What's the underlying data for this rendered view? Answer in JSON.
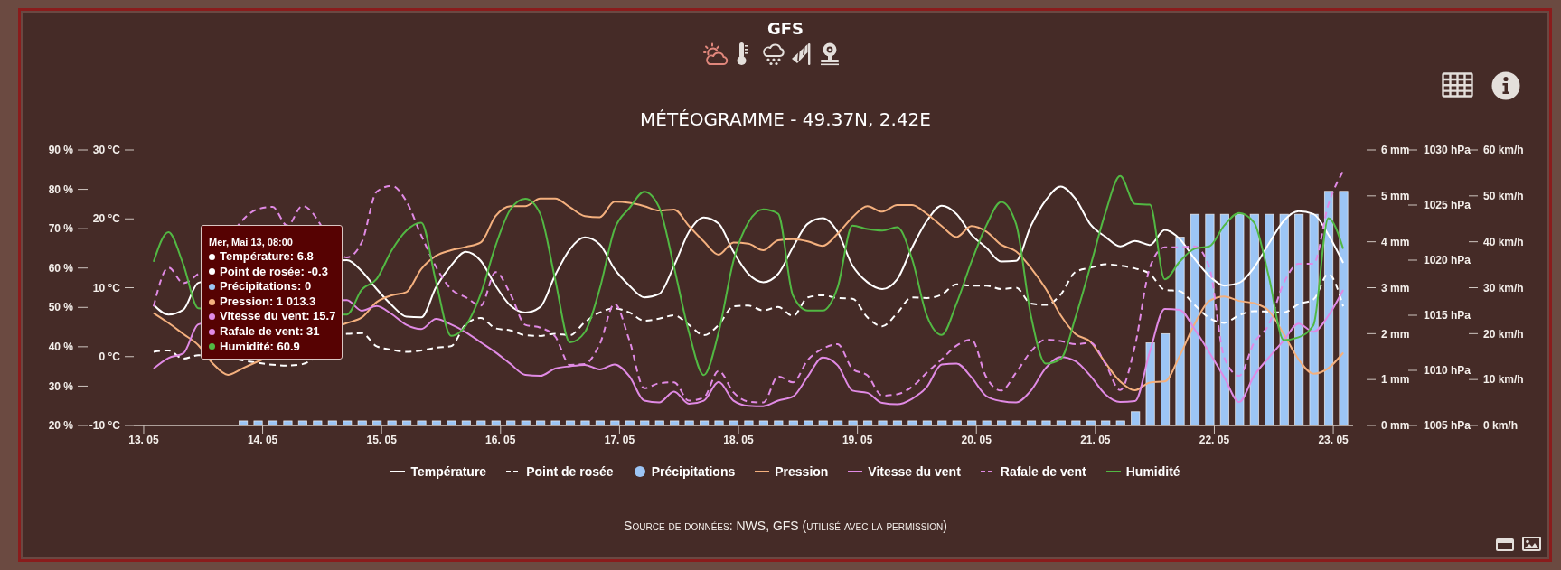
{
  "chart_data": [
    {
      "type": "line",
      "title": "GFS",
      "subtitle": "MÉTÉOGRAMME - 49.37N, 2.42E",
      "x": [
        "--05-13T02:00",
        "--05-13T05:00",
        "--05-13T08:00",
        "--05-13T11:00",
        "--05-13T14:00",
        "--05-13T17:00",
        "--05-13T20:00",
        "--05-13T23:00",
        "--05-14T02:00",
        "--05-14T05:00",
        "--05-14T08:00",
        "--05-14T11:00",
        "--05-14T14:00",
        "--05-14T17:00",
        "--05-14T20:00",
        "--05-14T23:00",
        "--05-15T02:00",
        "--05-15T05:00",
        "--05-15T08:00",
        "--05-15T11:00",
        "--05-15T14:00",
        "--05-15T17:00",
        "--05-15T20:00",
        "--05-15T23:00",
        "--05-16T02:00",
        "--05-16T05:00",
        "--05-16T08:00",
        "--05-16T11:00",
        "--05-16T14:00",
        "--05-16T17:00",
        "--05-16T20:00",
        "--05-16T23:00",
        "--05-17T02:00",
        "--05-17T05:00",
        "--05-17T08:00",
        "--05-17T11:00",
        "--05-17T14:00",
        "--05-17T17:00",
        "--05-17T20:00",
        "--05-17T23:00",
        "--05-18T02:00",
        "--05-18T05:00",
        "--05-18T08:00",
        "--05-18T11:00",
        "--05-18T14:00",
        "--05-18T17:00",
        "--05-18T20:00",
        "--05-18T23:00",
        "--05-19T02:00",
        "--05-19T05:00",
        "--05-19T08:00",
        "--05-19T11:00",
        "--05-19T14:00",
        "--05-19T17:00",
        "--05-19T20:00",
        "--05-19T23:00",
        "--05-20T02:00",
        "--05-20T05:00",
        "--05-20T08:00",
        "--05-20T11:00",
        "--05-20T14:00",
        "--05-20T17:00",
        "--05-20T20:00",
        "--05-20T23:00",
        "--05-21T02:00",
        "--05-21T05:00",
        "--05-21T08:00",
        "--05-21T11:00",
        "--05-21T14:00",
        "--05-21T17:00",
        "--05-21T20:00",
        "--05-21T23:00",
        "--05-22T02:00",
        "--05-22T05:00",
        "--05-22T08:00",
        "--05-22T11:00",
        "--05-22T14:00",
        "--05-22T17:00",
        "--05-22T20:00",
        "--05-22T23:00",
        "--05-23T02:00"
      ],
      "xlim": [
        "--05-12T22:00",
        "--05-23T04:00"
      ],
      "xticks": [
        {
          "value": "--05-13",
          "label": "13. 05"
        },
        {
          "value": "--05-14",
          "label": "14. 05"
        },
        {
          "value": "--05-15",
          "label": "15. 05"
        },
        {
          "value": "--05-16",
          "label": "16. 05"
        },
        {
          "value": "--05-17",
          "label": "17. 05"
        },
        {
          "value": "--05-18",
          "label": "18. 05"
        },
        {
          "value": "--05-19",
          "label": "19. 05"
        },
        {
          "value": "--05-20",
          "label": "20. 05"
        },
        {
          "value": "--05-21",
          "label": "21. 05"
        },
        {
          "value": "--05-22",
          "label": "22. 05"
        },
        {
          "value": "--05-23",
          "label": "23. 05"
        }
      ],
      "ylim": [
        -10,
        30
      ],
      "yticks": [
        {
          "value": -10,
          "label": "-10 °C"
        },
        {
          "value": 0,
          "label": "0 °C"
        },
        {
          "value": 10,
          "label": "10 °C"
        },
        {
          "value": 20,
          "label": "20 °C"
        },
        {
          "value": 30,
          "label": "30 °C"
        }
      ],
      "y2lim": [
        0,
        6
      ],
      "y2ticks": [
        {
          "value": 0,
          "label": "0 mm"
        },
        {
          "value": 1,
          "label": "1 mm"
        },
        {
          "value": 2,
          "label": "2 mm"
        },
        {
          "value": 3,
          "label": "3 mm"
        },
        {
          "value": 4,
          "label": "4 mm"
        },
        {
          "value": 5,
          "label": "5 mm"
        },
        {
          "value": 6,
          "label": "6 mm"
        }
      ],
      "y3lim": [
        1005,
        1030
      ],
      "y3ticks": [
        {
          "value": 1005,
          "label": "1005 hPa"
        },
        {
          "value": 1010,
          "label": "1010 hPa"
        },
        {
          "value": 1015,
          "label": "1015 hPa"
        },
        {
          "value": 1020,
          "label": "1020 hPa"
        },
        {
          "value": 1025,
          "label": "1025 hPa"
        },
        {
          "value": 1030,
          "label": "1030 hPa"
        }
      ],
      "series": [
        {
          "name": "Température",
          "color": "#ffffff",
          "values": [
            7.5,
            6.1,
            6.8,
            10.7,
            null,
            null,
            null,
            null,
            null,
            null,
            null,
            null,
            null,
            14.0,
            12.4,
            9.8,
            7.5,
            5.8,
            5.7,
            10.1,
            13.2,
            15.2,
            13.9,
            10.3,
            7.4,
            6.4,
            7.2,
            11.8,
            15.6,
            17.3,
            16.3,
            12.7,
            10.3,
            8.6,
            9.1,
            13.2,
            18.1,
            20.2,
            19.3,
            15.2,
            12.0,
            10.8,
            12.0,
            15.9,
            19.3,
            20.1,
            18.1,
            13.2,
            10.8,
            9.8,
            11.2,
            15.8,
            19.7,
            21.9,
            20.7,
            17.7,
            15.8,
            13.8,
            13.9,
            19.0,
            22.7,
            24.7,
            22.9,
            19.2,
            17.4,
            16.0,
            16.8,
            16.2,
            18.4,
            17.1,
            14.2,
            11.7,
            10.3,
            10.7,
            12.9,
            16.4,
            19.7,
            21.1,
            20.7,
            17.7,
            13.6
          ]
        },
        {
          "name": "Point de rosée",
          "color": "#ffffff",
          "line_style": "dashed",
          "values": [
            0.7,
            0.9,
            -0.3,
            0.2,
            null,
            null,
            null,
            null,
            null,
            -1.3,
            -1.1,
            null,
            null,
            3.3,
            3.4,
            1.5,
            1.0,
            0.7,
            0.9,
            1.3,
            1.5,
            4.7,
            5.6,
            4.1,
            3.8,
            3.1,
            3.0,
            3.3,
            3.1,
            5.0,
            6.4,
            7.0,
            6.4,
            5.2,
            5.5,
            6.0,
            4.6,
            3.1,
            4.6,
            7.3,
            7.4,
            6.7,
            7.2,
            5.9,
            8.6,
            8.9,
            8.5,
            8.4,
            5.7,
            4.4,
            6.3,
            8.6,
            8.5,
            9.0,
            10.5,
            10.3,
            10.3,
            9.8,
            10.0,
            7.7,
            7.5,
            9.0,
            12.3,
            12.9,
            13.4,
            13.2,
            12.8,
            12.0,
            9.7,
            9.5,
            7.5,
            5.6,
            4.9,
            6.0,
            6.6,
            6.5,
            6.4,
            7.6,
            8.3,
            12.0,
            7.3
          ]
        },
        {
          "name": "Précipitations",
          "type": "bar",
          "axis": "y2",
          "color": "#9cc5f5",
          "values": [
            0,
            0,
            0,
            0,
            0,
            0,
            0.1,
            0.1,
            0.1,
            0.1,
            0.1,
            0.1,
            0.1,
            0.1,
            0.1,
            0.1,
            0.1,
            0.1,
            0.1,
            0.1,
            0.1,
            0.1,
            0.1,
            0.1,
            0.1,
            0.1,
            0.1,
            0.1,
            0.1,
            0.1,
            0.1,
            0.1,
            0.1,
            0.1,
            0.1,
            0.1,
            0.1,
            0.1,
            0.1,
            0.1,
            0.1,
            0.1,
            0.1,
            0.1,
            0.1,
            0.1,
            0.1,
            0.1,
            0.1,
            0.1,
            0.1,
            0.1,
            0.1,
            0.1,
            0.1,
            0.1,
            0.1,
            0.1,
            0.1,
            0.1,
            0.1,
            0.1,
            0.1,
            0.1,
            0.1,
            0.1,
            0.3,
            1.8,
            2.0,
            4.1,
            4.6,
            4.6,
            4.6,
            4.6,
            4.6,
            4.6,
            4.6,
            4.6,
            4.6,
            5.1,
            5.1
          ]
        },
        {
          "name": "Pression",
          "axis": "y3",
          "color": "#f4b07e",
          "values": [
            1015.2,
            1014.3,
            1013.3,
            1012.3,
            1010.6,
            1009.6,
            1010.2,
            null,
            null,
            null,
            null,
            null,
            null,
            1014.3,
            1014.8,
            1016.2,
            1016.8,
            1017.1,
            1019.2,
            1020.4,
            1020.9,
            1021.2,
            1021.6,
            1024.0,
            1024.9,
            1024.9,
            1025.6,
            1025.6,
            1024.8,
            1024.0,
            1023.9,
            1025.3,
            1025.2,
            1024.9,
            1024.5,
            1024.6,
            1023.1,
            1021.7,
            1020.5,
            1021.6,
            1021.5,
            1020.9,
            1021.8,
            1021.9,
            1021.7,
            1021.3,
            1022.4,
            1023.9,
            1024.9,
            1024.4,
            1025.0,
            1025.0,
            1024.2,
            1023.1,
            1022.1,
            1023.1,
            1022.6,
            1021.4,
            1020.8,
            1019.3,
            1017.4,
            1015.0,
            1013.3,
            1012.6,
            1010.7,
            1009.0,
            1008.2,
            1008.9,
            1009.0,
            1011.3,
            1014.2,
            1016.3,
            1016.7,
            1016.3,
            1016.1,
            1015.4,
            1013.3,
            1011.0,
            1009.7,
            1010.2,
            1011.6
          ]
        }
      ],
      "legend": "bottom",
      "annotations": [
        "Mer, Mai 13, 08:00",
        "Température: 6.8",
        "Point de rosée: -0.3",
        "Précipitations: 0",
        "Pression: 1 013.3",
        "Vitesse du vent: 15.7",
        "Rafale de vent: 31",
        "Humidité: 60.9",
        "Source de données: NWS, GFS (utilisé avec la permission)"
      ]
    },
    {
      "type": "line",
      "tick_labels": "y",
      "x": [
        "--05-13T02:00",
        "--05-13T05:00",
        "--05-13T08:00",
        "--05-13T11:00",
        "--05-13T14:00",
        "--05-13T17:00",
        "--05-13T20:00",
        "--05-13T23:00",
        "--05-14T02:00",
        "--05-14T05:00",
        "--05-14T08:00",
        "--05-14T11:00",
        "--05-14T14:00",
        "--05-14T17:00",
        "--05-14T20:00",
        "--05-14T23:00",
        "--05-15T02:00",
        "--05-15T05:00",
        "--05-15T08:00",
        "--05-15T11:00",
        "--05-15T14:00",
        "--05-15T17:00",
        "--05-15T20:00",
        "--05-15T23:00",
        "--05-16T02:00",
        "--05-16T05:00",
        "--05-16T08:00",
        "--05-16T11:00",
        "--05-16T14:00",
        "--05-16T17:00",
        "--05-16T20:00",
        "--05-16T23:00",
        "--05-17T02:00",
        "--05-17T05:00",
        "--05-17T08:00",
        "--05-17T11:00",
        "--05-17T14:00",
        "--05-17T17:00",
        "--05-17T20:00",
        "--05-17T23:00",
        "--05-18T02:00",
        "--05-18T05:00",
        "--05-18T08:00",
        "--05-18T11:00",
        "--05-18T14:00",
        "--05-18T17:00",
        "--05-18T20:00",
        "--05-18T23:00",
        "--05-19T02:00",
        "--05-19T05:00",
        "--05-19T08:00",
        "--05-19T11:00",
        "--05-19T14:00",
        "--05-19T17:00",
        "--05-19T20:00",
        "--05-19T23:00",
        "--05-20T02:00",
        "--05-20T05:00",
        "--05-20T08:00",
        "--05-20T11:00",
        "--05-20T14:00",
        "--05-20T17:00",
        "--05-20T20:00",
        "--05-20T23:00",
        "--05-21T02:00",
        "--05-21T05:00",
        "--05-21T08:00",
        "--05-21T11:00",
        "--05-21T14:00",
        "--05-21T17:00",
        "--05-21T20:00",
        "--05-21T23:00",
        "--05-22T02:00",
        "--05-22T05:00",
        "--05-22T08:00",
        "--05-22T11:00",
        "--05-22T14:00",
        "--05-22T17:00",
        "--05-22T20:00",
        "--05-22T23:00",
        "--05-23T02:00"
      ],
      "xlim": [
        "--05-12T22:00",
        "--05-23T04:00"
      ],
      "ylim": [
        20,
        90
      ],
      "yticks": [
        {
          "value": 20,
          "label": "20 %"
        },
        {
          "value": 30,
          "label": "30 %"
        },
        {
          "value": 40,
          "label": "40 %"
        },
        {
          "value": 50,
          "label": "50 %"
        },
        {
          "value": 60,
          "label": "60 %"
        },
        {
          "value": 70,
          "label": "70 %"
        },
        {
          "value": 80,
          "label": "80 %"
        },
        {
          "value": 90,
          "label": "90 %"
        }
      ],
      "y2lim": [
        0,
        60
      ],
      "y2ticks": [
        {
          "value": 0,
          "label": "0 km/h"
        },
        {
          "value": 10,
          "label": "10 km/h"
        },
        {
          "value": 20,
          "label": "20 km/h"
        },
        {
          "value": 30,
          "label": "30 km/h"
        },
        {
          "value": 40,
          "label": "40 km/h"
        },
        {
          "value": 50,
          "label": "50 km/h"
        },
        {
          "value": 60,
          "label": "60 km/h"
        }
      ],
      "series": [
        {
          "name": "Vitesse du vent",
          "axis": "y2",
          "color": "#e08ae4",
          "values": [
            12.4,
            14.7,
            15.7,
            22.0,
            null,
            null,
            null,
            null,
            null,
            null,
            null,
            null,
            null,
            27.3,
            25.0,
            26.0,
            24.3,
            21.9,
            21.0,
            23.2,
            22.0,
            20.3,
            18.1,
            15.9,
            13.4,
            11.0,
            10.8,
            12.4,
            12.9,
            13.2,
            12.2,
            13.3,
            10.7,
            5.4,
            5.0,
            7.4,
            4.7,
            5.4,
            9.5,
            5.4,
            4.3,
            4.2,
            5.4,
            6.3,
            10.7,
            14.8,
            13.1,
            7.6,
            7.1,
            4.9,
            4.6,
            5.8,
            8.4,
            13.3,
            13.5,
            10.5,
            6.4,
            5.3,
            5.0,
            7.6,
            12.5,
            14.9,
            14.0,
            10.8,
            6.8,
            5.1,
            5.3,
            16.1,
            25.4,
            25.2,
            21.0,
            15.9,
            10.5,
            5.1,
            10.8,
            14.8,
            18.5,
            22.2,
            20.4,
            23.9,
            29.5
          ]
        },
        {
          "name": "Rafale de vent",
          "axis": "y2",
          "color": "#e08ae4",
          "line_style": "dashed",
          "values": [
            25.9,
            34.4,
            31,
            33,
            null,
            null,
            null,
            47.1,
            47.6,
            43.5,
            47.8,
            null,
            null,
            36.6,
            39.9,
            50.9,
            52.2,
            48.8,
            41.4,
            34.5,
            29.7,
            27.9,
            26.1,
            33.4,
            28.6,
            21.9,
            21.3,
            19.4,
            13.2,
            13.4,
            17.7,
            26.5,
            18.5,
            8.1,
            9.2,
            9.4,
            5.4,
            6.1,
            11.9,
            7.2,
            5.2,
            5.0,
            10.7,
            9.4,
            14.3,
            16.7,
            17.7,
            12.3,
            10.9,
            6.5,
            6.8,
            8.4,
            11.5,
            14.4,
            17.4,
            18.7,
            10.5,
            7.6,
            11.5,
            16.1,
            18.7,
            18.4,
            17.7,
            18.0,
            13.5,
            7.7,
            17.4,
            34.4,
            38.8,
            38.8,
            39.0,
            34.4,
            14.8,
            10.8,
            18.0,
            22.0,
            31.0,
            35.2,
            35.2,
            48.1,
            55.4
          ]
        },
        {
          "name": "Humidité",
          "color": "#52b843",
          "values": [
            61.6,
            69.1,
            60.9,
            49.8,
            null,
            null,
            null,
            null,
            null,
            null,
            null,
            null,
            null,
            48.2,
            54.5,
            57.2,
            64.4,
            69.5,
            71.5,
            56.4,
            42.8,
            45.4,
            53.4,
            65.7,
            74.9,
            77.6,
            73.8,
            57.2,
            41.1,
            43.7,
            54.7,
            69.9,
            75.2,
            79.4,
            75.4,
            60.2,
            43.7,
            32.8,
            43.7,
            61.9,
            71.6,
            74.9,
            73.8,
            53.0,
            49.2,
            49.2,
            55.1,
            70.8,
            69.9,
            69.5,
            70.4,
            62.4,
            47.9,
            43.0,
            51.0,
            61.6,
            70.8,
            76.8,
            71.2,
            47.9,
            35.7,
            36.9,
            47.5,
            60.5,
            73.9,
            83.4,
            76.3,
            76.1,
            57.1,
            61.6,
            64.9,
            65.5,
            70.8,
            74.0,
            71.6,
            57.8,
            41.7,
            42.4,
            45.5,
            72.7,
            64.9
          ]
        }
      ],
      "legend": "bottom"
    }
  ]
}
